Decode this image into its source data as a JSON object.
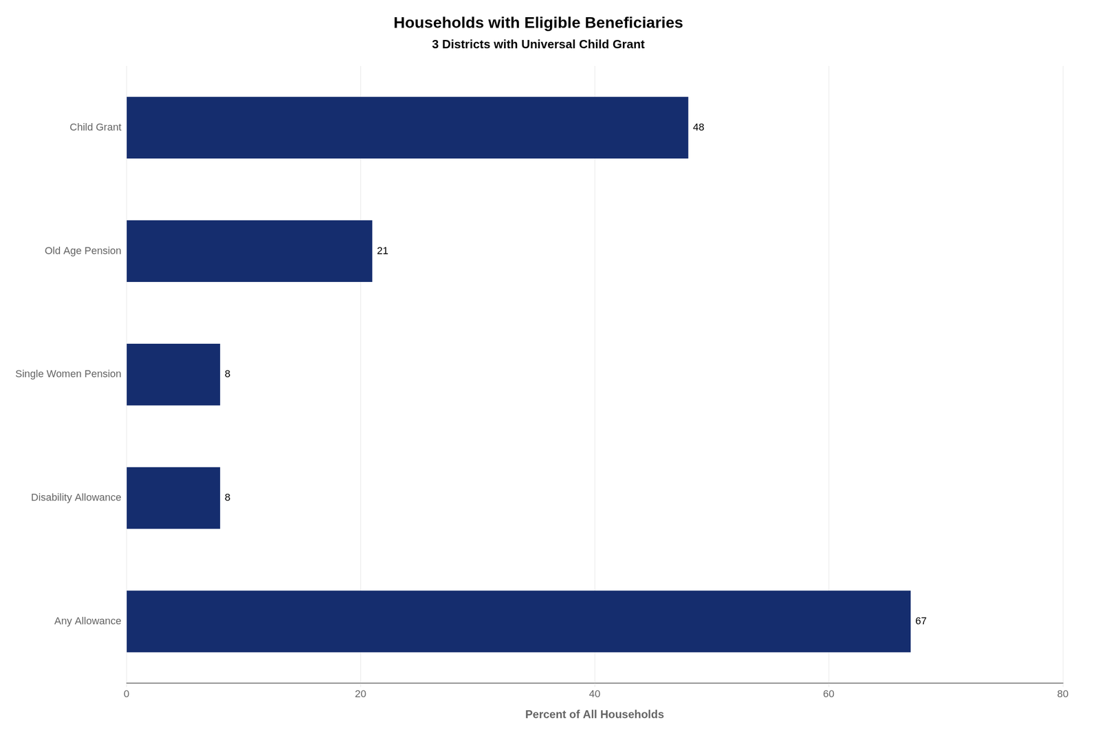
{
  "chart_data": {
    "type": "bar",
    "orientation": "horizontal",
    "title": "Households with Eligible Beneficiaries",
    "subtitle": "3 Districts with Universal Child Grant",
    "xlabel": "Percent of All Households",
    "categories": [
      "Any Allowance",
      "Disability Allowance",
      "Single Women Pension",
      "Old Age Pension",
      "Child Grant"
    ],
    "values": [
      67,
      8,
      8,
      21,
      48
    ],
    "color": "#152d6e",
    "xlim": [
      0,
      80
    ],
    "xticks": [
      0,
      20,
      40,
      60,
      80
    ],
    "grid": true,
    "data_labels": true
  }
}
